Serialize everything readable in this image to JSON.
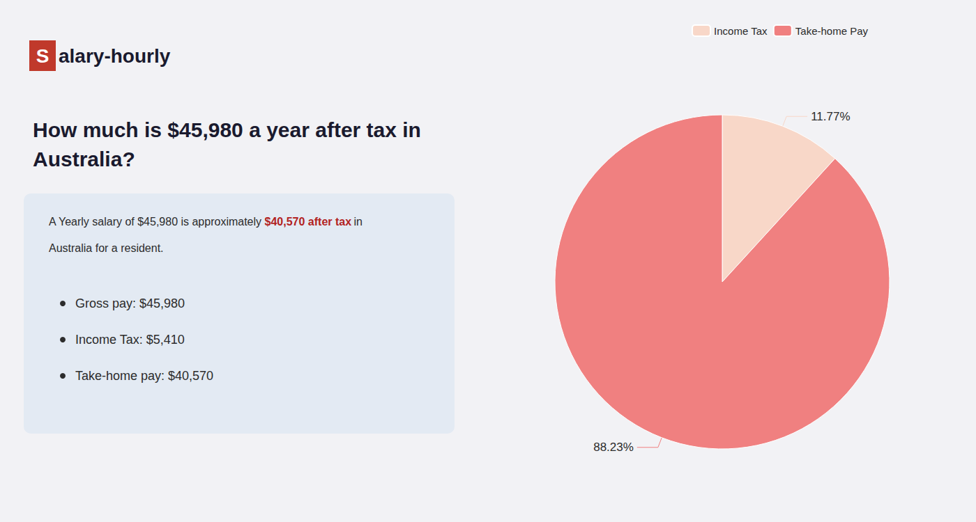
{
  "chart_data": {
    "type": "pie",
    "title": "How much is $45,980 a year after tax in Australia?",
    "annotations": [
      "S",
      "alary-hourly",
      "A Yearly salary of $45,980 is approximately",
      "$40,570 after tax",
      "in",
      "Australia for a resident.",
      "Gross pay: $45,980",
      "Income Tax: $5,410",
      "Take-home pay: $40,570"
    ],
    "categories": [
      "Income Tax",
      "Take-home Pay"
    ],
    "values": [
      11.77,
      88.23
    ],
    "value_labels": [
      "11.77%",
      "88.23%"
    ],
    "colors": [
      "#f8d7c8",
      "#f08080"
    ],
    "data_labels": true,
    "legend": "top"
  }
}
